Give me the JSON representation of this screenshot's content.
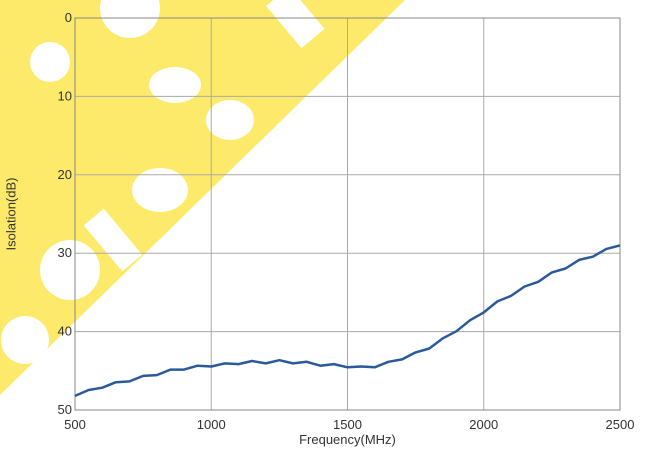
{
  "chart_data": {
    "type": "line",
    "title": "",
    "xlabel": "Frequency(MHz)",
    "ylabel": "Isolation(dB)",
    "xlim": [
      500,
      2500
    ],
    "ylim": [
      0,
      50
    ],
    "y_inverted": true,
    "xticks": [
      500,
      1000,
      1500,
      2000,
      2500
    ],
    "yticks": [
      0,
      10,
      20,
      30,
      40,
      50
    ],
    "grid": true,
    "legend": "none",
    "series": [
      {
        "color": "#2a5a9a",
        "x": [
          500,
          550,
          600,
          650,
          700,
          750,
          800,
          850,
          900,
          950,
          1000,
          1050,
          1100,
          1150,
          1200,
          1250,
          1300,
          1350,
          1400,
          1450,
          1500,
          1550,
          1600,
          1650,
          1700,
          1750,
          1800,
          1850,
          1900,
          1950,
          2000,
          2050,
          2100,
          2150,
          2200,
          2250,
          2300,
          2350,
          2400,
          2450,
          2500
        ],
        "y": [
          48.2,
          47.6,
          47.0,
          46.6,
          46.2,
          45.8,
          45.4,
          45.0,
          44.7,
          44.5,
          44.3,
          44.2,
          44.0,
          43.9,
          43.9,
          43.8,
          43.9,
          44.0,
          44.2,
          44.3,
          44.4,
          44.6,
          44.4,
          44.0,
          43.4,
          42.8,
          42.0,
          41.0,
          39.8,
          38.7,
          37.4,
          36.3,
          35.3,
          34.4,
          33.5,
          32.6,
          31.8,
          31.0,
          30.3,
          29.6,
          29.0
        ]
      }
    ]
  },
  "watermark": {
    "color": "#fdea6a"
  }
}
